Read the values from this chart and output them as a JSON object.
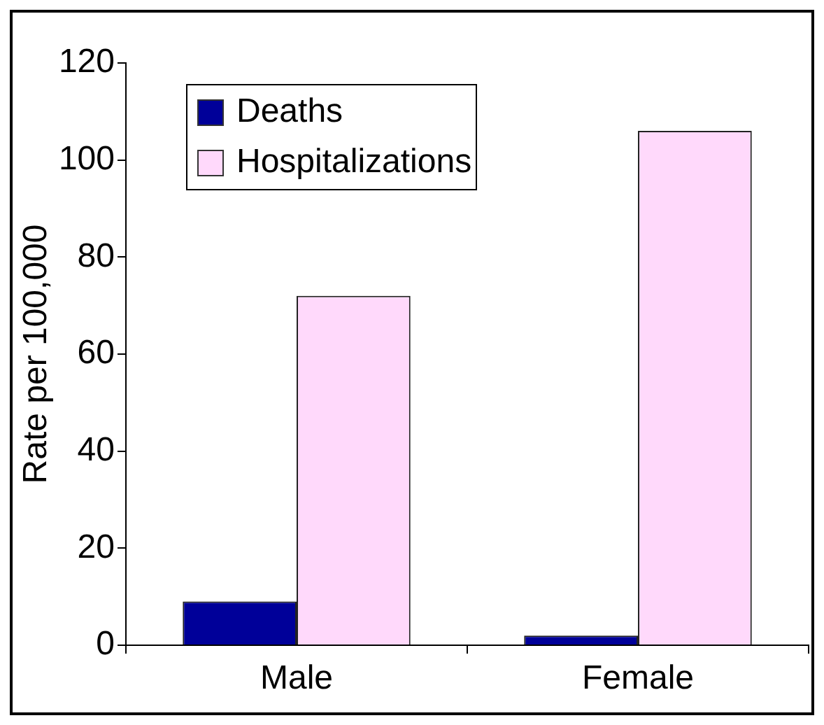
{
  "chart_data": {
    "type": "bar",
    "categories": [
      "Male",
      "Female"
    ],
    "series": [
      {
        "name": "Deaths",
        "color": "#000099",
        "values": [
          9,
          2
        ]
      },
      {
        "name": "Hospitalizations",
        "color": "#ffd9fb",
        "values": [
          72,
          106
        ]
      }
    ],
    "ylabel": "Rate per 100,000",
    "ylim": [
      0,
      120
    ],
    "yticks": [
      0,
      20,
      40,
      60,
      80,
      100,
      120
    ],
    "grid": false,
    "legend": "top left"
  }
}
